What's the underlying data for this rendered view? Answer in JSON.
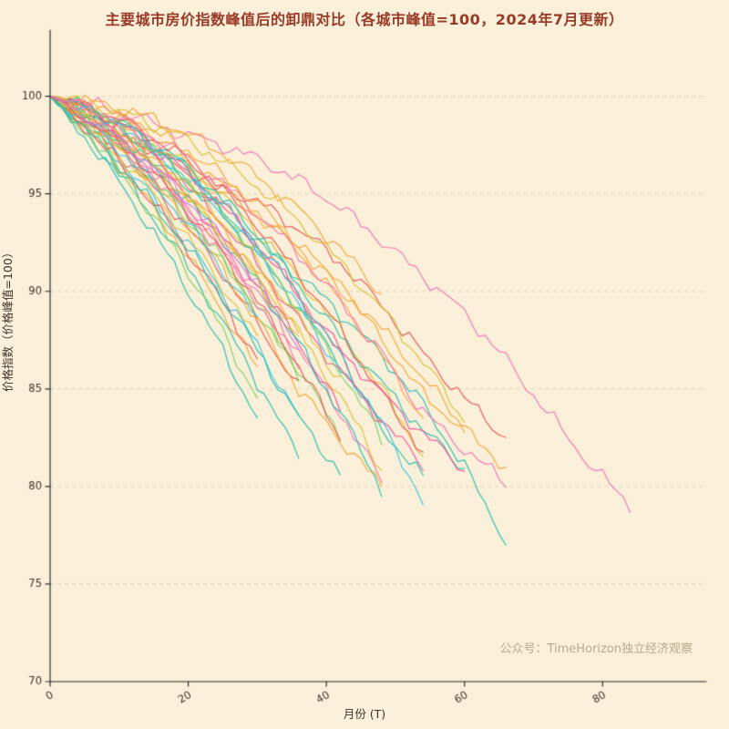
{
  "title": "主要城市房价指数峰值后的卸鼎对比（各城市峰值=100，2024年7月更新）",
  "watermark": "公众号：TimeHorizon独立经济观察",
  "chart_data": {
    "type": "line",
    "title": "主要城市房价指数峰值后的卸鼎对比（各城市峰值=100，2024年7月更新）",
    "xlabel": "月份 (T)",
    "ylabel": "价格指数（价格峰值=100）",
    "xlim": [
      0,
      95
    ],
    "ylim": [
      70,
      103.3
    ],
    "xticks": [
      0,
      20,
      40,
      60,
      80
    ],
    "yticks": [
      70,
      75,
      80,
      85,
      90,
      95,
      100
    ],
    "grid": "horizontal-dashed",
    "legend": "none",
    "background": "#faf0da",
    "grid_color": "rgba(180,160,120,0.35)",
    "spine_color": "#2f2f2f",
    "tick_label_color": "#3d3429",
    "series": [
      {
        "color": "#1fbfae",
        "x": [
          0,
          6,
          12,
          18,
          24,
          30,
          36,
          42,
          48,
          54,
          60,
          66
        ],
        "y": [
          100,
          98.8,
          97.2,
          95.9,
          94.3,
          92.6,
          90.8,
          88.9,
          86.7,
          84.2,
          81.0,
          77.2
        ]
      },
      {
        "color": "#f272b6",
        "x": [
          0,
          6,
          12,
          18,
          24,
          30,
          36,
          42,
          48,
          54,
          60,
          66,
          72,
          78,
          84
        ],
        "y": [
          100,
          99.6,
          99.0,
          98.2,
          97.6,
          96.8,
          95.7,
          94.3,
          92.6,
          90.8,
          88.9,
          86.5,
          83.8,
          81.2,
          79.0
        ]
      },
      {
        "color": "#f5a531",
        "x": [
          0,
          6,
          12,
          18,
          24,
          30,
          36,
          42,
          48,
          54,
          60
        ],
        "y": [
          100,
          99.2,
          98.1,
          96.8,
          95.3,
          93.9,
          92.2,
          90.3,
          88.1,
          85.6,
          83.0
        ]
      },
      {
        "color": "#e85555",
        "x": [
          0,
          6,
          12,
          18,
          24,
          30,
          36,
          42,
          48,
          54,
          60,
          66
        ],
        "y": [
          100,
          99.0,
          97.8,
          96.5,
          95.4,
          94.6,
          93.2,
          91.5,
          89.3,
          86.8,
          84.5,
          82.5
        ]
      },
      {
        "color": "#d9c02f",
        "x": [
          0,
          6,
          12,
          18,
          24,
          30,
          36,
          42,
          48
        ],
        "y": [
          100,
          98.7,
          97.2,
          95.4,
          93.3,
          90.8,
          87.9,
          84.6,
          80.9
        ]
      },
      {
        "color": "#1fbfae",
        "x": [
          0,
          6,
          12,
          18,
          24,
          30,
          36
        ],
        "y": [
          100,
          97.8,
          95.2,
          92.3,
          89.0,
          85.4,
          81.5
        ]
      },
      {
        "color": "#7ccf5f",
        "x": [
          0,
          6,
          12,
          18,
          24,
          30,
          36,
          42
        ],
        "y": [
          100,
          98.5,
          96.7,
          94.5,
          92.0,
          89.2,
          86.0,
          82.6
        ]
      },
      {
        "color": "#37c0e8",
        "x": [
          0,
          6,
          12,
          18,
          24,
          30,
          36
        ],
        "y": [
          100,
          98.2,
          96.0,
          93.4,
          90.5,
          87.2,
          83.6
        ]
      },
      {
        "color": "#f5a531",
        "x": [
          0,
          6,
          12,
          18,
          24,
          30,
          36,
          42,
          48,
          54
        ],
        "y": [
          100,
          99.4,
          98.6,
          97.4,
          95.9,
          94.1,
          92.0,
          89.5,
          86.7,
          83.5
        ]
      },
      {
        "color": "#f272b6",
        "x": [
          0,
          6,
          12,
          18,
          24,
          30,
          36,
          42,
          48
        ],
        "y": [
          100,
          98.6,
          96.9,
          94.8,
          92.5,
          89.9,
          87.0,
          83.8,
          80.3
        ]
      },
      {
        "color": "#e85555",
        "x": [
          0,
          6,
          12,
          18,
          24,
          30,
          36
        ],
        "y": [
          100,
          98.4,
          96.4,
          94.1,
          91.4,
          88.4,
          85.0
        ]
      },
      {
        "color": "#d9c02f",
        "x": [
          0,
          6,
          12,
          18,
          24,
          30,
          36,
          42,
          48,
          54
        ],
        "y": [
          100,
          99.3,
          98.3,
          96.9,
          95.2,
          93.1,
          90.7,
          88.0,
          85.0,
          81.6
        ]
      },
      {
        "color": "#1fbfae",
        "x": [
          0,
          6,
          12,
          18,
          24,
          30
        ],
        "y": [
          100,
          97.5,
          94.6,
          91.3,
          87.6,
          83.5
        ]
      },
      {
        "color": "#f5a531",
        "x": [
          0,
          6,
          12,
          18,
          24,
          30
        ],
        "y": [
          100,
          98.0,
          95.6,
          92.8,
          89.6,
          86.0
        ]
      },
      {
        "color": "#ef4f9a",
        "x": [
          0,
          6,
          12,
          18,
          24,
          30,
          36,
          42
        ],
        "y": [
          100,
          98.9,
          97.4,
          95.5,
          93.2,
          90.5,
          87.4,
          83.9
        ]
      },
      {
        "color": "#1fbfae",
        "x": [
          0,
          6,
          12,
          18,
          24,
          30,
          36,
          42,
          48,
          54
        ],
        "y": [
          100,
          99.1,
          97.9,
          96.3,
          94.3,
          91.9,
          89.2,
          86.3,
          83.0,
          80.4
        ]
      },
      {
        "color": "#d9c02f",
        "x": [
          0,
          6,
          12,
          18,
          24,
          30
        ],
        "y": [
          100,
          98.3,
          96.2,
          93.7,
          90.8,
          87.5
        ]
      },
      {
        "color": "#e85555",
        "x": [
          0,
          6,
          12,
          18,
          24,
          30,
          36,
          42,
          48
        ],
        "y": [
          100,
          99.3,
          98.2,
          96.7,
          94.8,
          92.5,
          89.8,
          86.7,
          83.2
        ]
      },
      {
        "color": "#7ccf5f",
        "x": [
          0,
          6,
          12,
          18,
          24,
          30
        ],
        "y": [
          100,
          97.9,
          95.3,
          92.2,
          88.6,
          84.5
        ]
      },
      {
        "color": "#37c0e8",
        "x": [
          0,
          6,
          12,
          18,
          24,
          30,
          36,
          42
        ],
        "y": [
          100,
          99.2,
          98.0,
          96.4,
          94.4,
          92.0,
          89.2,
          86.0
        ]
      },
      {
        "color": "#f272b6",
        "x": [
          0,
          6,
          12,
          18,
          24,
          30,
          36
        ],
        "y": [
          100,
          98.7,
          97.0,
          94.9,
          92.4,
          89.5,
          86.2
        ]
      },
      {
        "color": "#f5a531",
        "x": [
          0,
          6,
          12,
          18,
          24,
          30,
          36,
          42,
          48,
          54,
          60,
          66
        ],
        "y": [
          100,
          99.5,
          98.7,
          97.6,
          96.2,
          94.5,
          92.5,
          90.2,
          87.6,
          84.7,
          82.9,
          81.0
        ]
      },
      {
        "color": "#1fbfae",
        "x": [
          0,
          6,
          12,
          18,
          24,
          30,
          36,
          42,
          48
        ],
        "y": [
          100,
          98.8,
          97.3,
          95.4,
          93.1,
          90.4,
          87.3,
          83.8,
          79.9
        ]
      },
      {
        "color": "#d9c02f",
        "x": [
          0,
          6,
          12,
          18,
          24,
          30,
          36,
          42,
          48,
          54,
          60
        ],
        "y": [
          100,
          99.6,
          99.0,
          98.1,
          96.9,
          95.4,
          93.6,
          91.5,
          89.1,
          86.4,
          83.4
        ]
      },
      {
        "color": "#e85555",
        "x": [
          0,
          6,
          12,
          18,
          24,
          30
        ],
        "y": [
          100,
          98.1,
          95.8,
          93.1,
          90.0,
          86.5
        ]
      },
      {
        "color": "#ef4f9a",
        "x": [
          0,
          6,
          12,
          18,
          24,
          30,
          36,
          42,
          48,
          54
        ],
        "y": [
          100,
          99.0,
          97.7,
          96.0,
          93.9,
          91.4,
          88.5,
          85.9,
          83.4,
          81.1
        ]
      },
      {
        "color": "#7ccf5f",
        "x": [
          0,
          6,
          12,
          18,
          24,
          30,
          36
        ],
        "y": [
          100,
          98.6,
          96.8,
          94.6,
          92.0,
          89.0,
          85.6
        ]
      },
      {
        "color": "#f5a531",
        "x": [
          0,
          6,
          12,
          18,
          24,
          30,
          36,
          42,
          48
        ],
        "y": [
          100,
          98.5,
          96.6,
          94.3,
          91.6,
          88.5,
          85.0,
          82.4,
          80.0
        ]
      },
      {
        "color": "#37c0e8",
        "x": [
          0,
          6,
          12,
          18,
          24,
          30
        ],
        "y": [
          100,
          98.5,
          96.6,
          94.3,
          91.6,
          88.5
        ]
      },
      {
        "color": "#1fbfae",
        "x": [
          0,
          6,
          12,
          18,
          24,
          30,
          36,
          42,
          48,
          54,
          60
        ],
        "y": [
          100,
          99.3,
          98.3,
          96.9,
          95.1,
          92.9,
          90.3,
          87.7,
          85.3,
          82.9,
          80.9
        ]
      },
      {
        "color": "#f272b6",
        "x": [
          0,
          6,
          12,
          18,
          24,
          30
        ],
        "y": [
          100,
          98.8,
          97.2,
          95.2,
          92.8,
          90.1
        ]
      },
      {
        "color": "#d9c02f",
        "x": [
          0,
          6,
          12,
          18,
          24,
          30,
          36,
          42
        ],
        "y": [
          100,
          99.1,
          97.8,
          96.1,
          94.0,
          91.5,
          88.6,
          85.4
        ]
      },
      {
        "color": "#e85555",
        "x": [
          0,
          6,
          12,
          18,
          24,
          30,
          36,
          42,
          48,
          54
        ],
        "y": [
          100,
          99.4,
          98.5,
          97.2,
          95.5,
          93.4,
          90.9,
          88.0,
          84.7,
          81.8
        ]
      },
      {
        "color": "#f5a531",
        "x": [
          0,
          6,
          12,
          18,
          24,
          30,
          36
        ],
        "y": [
          100,
          99.0,
          97.6,
          95.8,
          93.6,
          91.0,
          88.1
        ]
      },
      {
        "color": "#1fbfae",
        "x": [
          0,
          6,
          12,
          18,
          24,
          30,
          36,
          42
        ],
        "y": [
          100,
          98.0,
          95.7,
          93.1,
          90.2,
          87.0,
          83.5,
          80.7
        ]
      },
      {
        "color": "#ef4f9a",
        "x": [
          0,
          6,
          12,
          18,
          24,
          30,
          36,
          42,
          48,
          54,
          60
        ],
        "y": [
          100,
          99.2,
          98.1,
          96.6,
          94.7,
          92.4,
          89.8,
          87.0,
          84.8,
          82.7,
          80.9
        ]
      },
      {
        "color": "#7ccf5f",
        "x": [
          0,
          6,
          12,
          18,
          24,
          30,
          36,
          42,
          48
        ],
        "y": [
          100,
          99.2,
          98.0,
          96.4,
          94.4,
          92.0,
          89.2,
          86.0,
          82.4
        ]
      },
      {
        "color": "#d9c02f",
        "x": [
          0,
          6,
          12,
          18,
          24,
          30,
          36
        ],
        "y": [
          100,
          98.9,
          97.4,
          95.5,
          93.2,
          90.5,
          87.4
        ]
      },
      {
        "color": "#37c0e8",
        "x": [
          0,
          6,
          12,
          18,
          24,
          30,
          36,
          42,
          48,
          54
        ],
        "y": [
          100,
          99.3,
          98.2,
          96.7,
          94.8,
          92.5,
          89.8,
          86.7,
          83.2,
          79.3
        ]
      },
      {
        "color": "#e85555",
        "x": [
          0,
          6,
          12,
          18,
          24,
          30,
          36,
          42
        ],
        "y": [
          100,
          98.7,
          97.0,
          94.9,
          92.4,
          89.5,
          86.2,
          82.5
        ]
      },
      {
        "color": "#f5a531",
        "x": [
          0,
          6,
          12,
          18,
          24,
          30,
          36,
          42,
          48
        ],
        "y": [
          100,
          99.7,
          99.2,
          98.4,
          97.3,
          95.9,
          94.2,
          92.2,
          89.9
        ]
      },
      {
        "color": "#f272b6",
        "x": [
          0,
          6,
          12,
          18,
          24,
          30,
          36,
          42,
          48,
          54,
          60,
          66
        ],
        "y": [
          100,
          99.4,
          98.5,
          97.3,
          95.8,
          94.0,
          91.9,
          89.5,
          86.8,
          83.8,
          81.9,
          80.2
        ]
      },
      {
        "color": "#c77dde",
        "x": [
          0,
          6,
          12,
          18,
          24,
          30,
          36
        ],
        "y": [
          100,
          98.8,
          97.3,
          95.4,
          93.1,
          90.4,
          87.3
        ]
      }
    ]
  }
}
